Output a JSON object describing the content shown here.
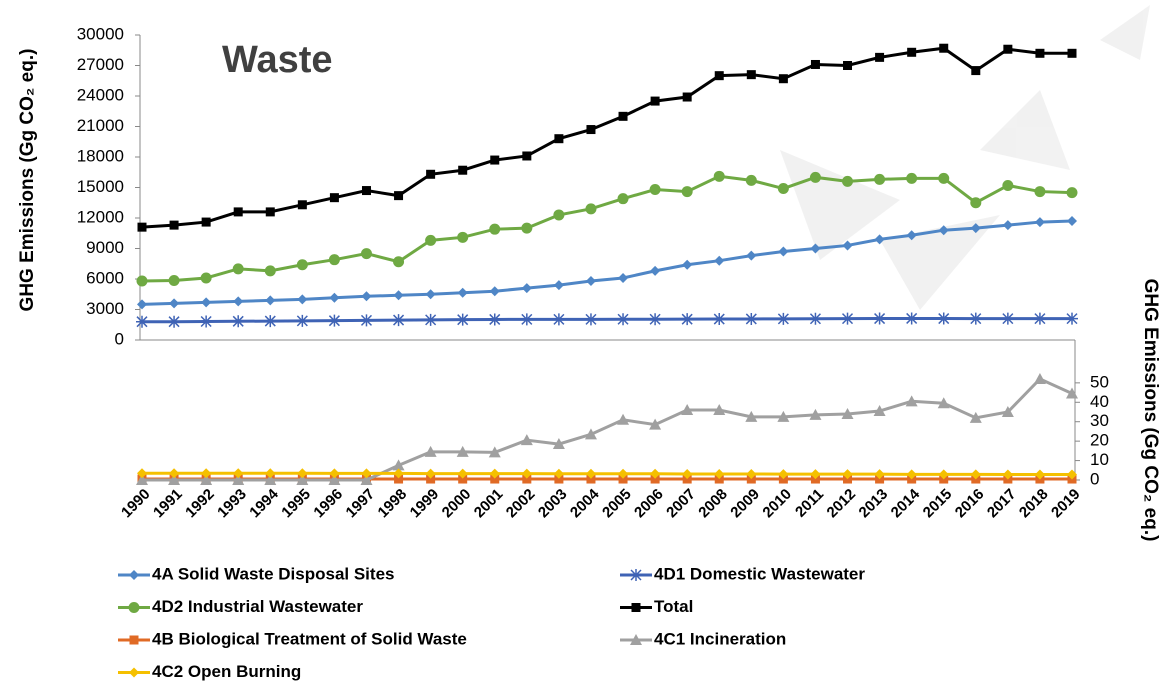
{
  "chart_data": {
    "type": "line",
    "title": "Waste",
    "ylabel": "GHG Emissions (Gg CO₂ eq.)",
    "y2label": "GHG Emissions (Gg CO₂ eq.)",
    "categories": [
      "1990",
      "1991",
      "1992",
      "1993",
      "1994",
      "1995",
      "1996",
      "1997",
      "1998",
      "1999",
      "2000",
      "2001",
      "2002",
      "2003",
      "2004",
      "2005",
      "2006",
      "2007",
      "2008",
      "2009",
      "2010",
      "2011",
      "2012",
      "2013",
      "2014",
      "2015",
      "2016",
      "2017",
      "2018",
      "2019"
    ],
    "ylim": [
      0,
      30000
    ],
    "yticks": [
      0,
      3000,
      6000,
      9000,
      12000,
      15000,
      18000,
      21000,
      24000,
      27000,
      30000
    ],
    "y2lim": [
      0,
      70
    ],
    "y2ticks": [
      0,
      10,
      20,
      30,
      40,
      50
    ],
    "series": [
      {
        "name": "4A Solid Waste Disposal Sites",
        "color": "#4f86c6",
        "marker": "diamond",
        "values": [
          3500,
          3600,
          3700,
          3800,
          3900,
          4000,
          4150,
          4300,
          4400,
          4500,
          4650,
          4800,
          5100,
          5400,
          5800,
          6100,
          6800,
          7400,
          7800,
          8300,
          8700,
          9000,
          9300,
          9900,
          10300,
          10800,
          11000,
          11300,
          11600,
          11700
        ]
      },
      {
        "name": "4D1 Domestic Wastewater",
        "color": "#3f63b5",
        "marker": "asterisk",
        "values": [
          1800,
          1800,
          1820,
          1840,
          1860,
          1880,
          1900,
          1930,
          1960,
          1980,
          2000,
          2020,
          2030,
          2030,
          2030,
          2040,
          2040,
          2050,
          2060,
          2070,
          2080,
          2090,
          2100,
          2110,
          2120,
          2110,
          2100,
          2100,
          2100,
          2100
        ]
      },
      {
        "name": "4D2 Industrial Wastewater",
        "color": "#6fa943",
        "marker": "circle",
        "values": [
          5800,
          5850,
          6100,
          7000,
          6800,
          7400,
          7900,
          8500,
          7700,
          9800,
          10100,
          10900,
          11000,
          12300,
          12900,
          13900,
          14800,
          14600,
          16100,
          15700,
          14900,
          16000,
          15600,
          15800,
          15900,
          15900,
          13500,
          15200,
          14600,
          14500
        ]
      },
      {
        "name": "Total",
        "color": "#000000",
        "marker": "square",
        "values": [
          11100,
          11300,
          11600,
          12600,
          12600,
          13300,
          14000,
          14700,
          14200,
          16300,
          16700,
          17700,
          18100,
          19800,
          20700,
          22000,
          23500,
          23900,
          26000,
          26100,
          25700,
          27100,
          27000,
          27800,
          28300,
          28700,
          26500,
          28600,
          28200,
          28200
        ]
      },
      {
        "name": "4B Biological Treatment of Solid Waste",
        "color": "#e06a25",
        "marker": "square",
        "axis": "y2",
        "values": [
          0.5,
          0.5,
          0.5,
          0.5,
          0.5,
          0.5,
          0.5,
          0.5,
          0.5,
          0.5,
          0.5,
          0.5,
          0.5,
          0.5,
          0.5,
          0.5,
          0.5,
          0.5,
          0.5,
          0.5,
          0.5,
          0.5,
          0.5,
          0.5,
          0.5,
          0.5,
          0.5,
          0.5,
          0.5,
          0.5
        ]
      },
      {
        "name": "4C1 Incineration",
        "color": "#a0a0a0",
        "marker": "triangle",
        "axis": "y2",
        "values": [
          0,
          0,
          0,
          0,
          0,
          0,
          0,
          0,
          7.5,
          14.5,
          14.5,
          14.2,
          20.5,
          18.5,
          23.5,
          31,
          28.5,
          36,
          36,
          32.5,
          32.5,
          33.5,
          34,
          35.5,
          40.5,
          39.5,
          32,
          35,
          52,
          44.5
        ]
      },
      {
        "name": "4C2 Open Burning",
        "color": "#f5c000",
        "marker": "diamond",
        "axis": "y2",
        "values": [
          3.5,
          3.5,
          3.5,
          3.5,
          3.5,
          3.5,
          3.4,
          3.4,
          3.4,
          3.3,
          3.3,
          3.3,
          3.3,
          3.2,
          3.2,
          3.2,
          3.2,
          3.1,
          3.1,
          3.1,
          3.0,
          3.0,
          3.0,
          3.0,
          2.9,
          2.9,
          2.9,
          2.8,
          2.8,
          2.8
        ]
      }
    ]
  }
}
